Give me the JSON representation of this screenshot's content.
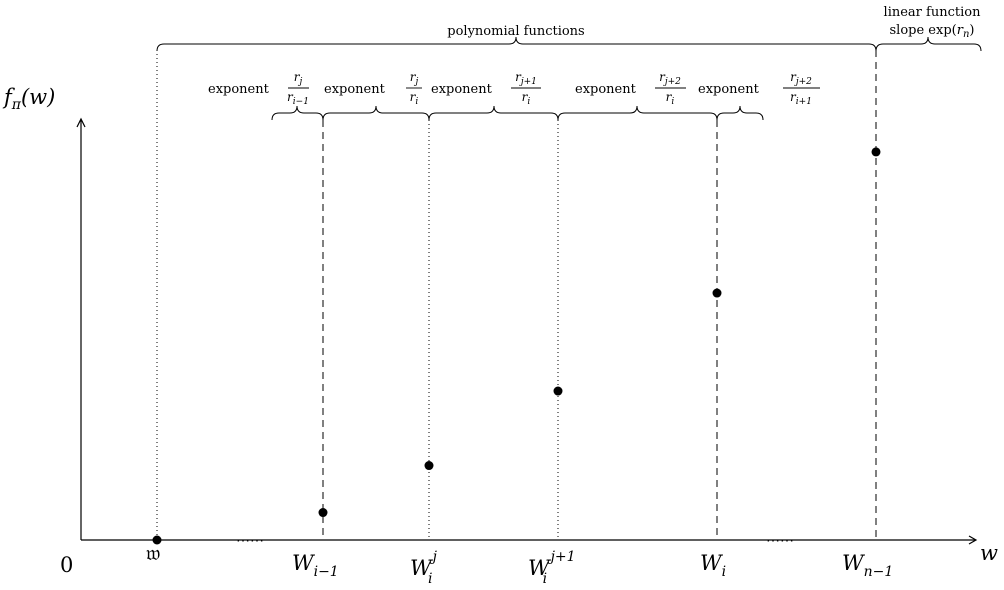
{
  "axes": {
    "y_label": {
      "f": "f",
      "sub": "π",
      "arg": "(w)"
    },
    "x_label": "w",
    "origin_label": "0",
    "gap_marks": [
      "⋯⋯",
      "⋯⋯"
    ]
  },
  "x_ticks": [
    {
      "id": "frak-w",
      "text": "𝔴"
    },
    {
      "id": "w-im1",
      "base": "W",
      "sub": "i−1",
      "sup": ""
    },
    {
      "id": "w-ij",
      "base": "W",
      "sub": "i",
      "sup": "j"
    },
    {
      "id": "w-ij1",
      "base": "W",
      "sub": "i",
      "sup": "j+1"
    },
    {
      "id": "w-i",
      "base": "W",
      "sub": "i",
      "sup": ""
    },
    {
      "id": "w-nm1",
      "base": "W",
      "sub": "n−1",
      "sup": ""
    }
  ],
  "braces": {
    "polynomial": "polynomial functions",
    "linear_line1": "linear function",
    "linear_line2_text": "slope exp(",
    "linear_line2_var": "r",
    "linear_line2_sub": "n",
    "linear_line2_close": ")"
  },
  "exponent_word": "exponent",
  "exponents": [
    {
      "num": "r",
      "num_sub": "j",
      "den": "r",
      "den_sub": "i−1"
    },
    {
      "num": "r",
      "num_sub": "j",
      "den": "r",
      "den_sub": "i"
    },
    {
      "num": "r",
      "num_sub": "j+1",
      "den": "r",
      "den_sub": "i"
    },
    {
      "num": "r",
      "num_sub": "j+2",
      "den": "r",
      "den_sub": "i"
    },
    {
      "num": "r",
      "num_sub": "j+2",
      "den": "r",
      "den_sub": "i+1"
    }
  ],
  "points": [
    {
      "name": "frak-w",
      "x_rel": 0.0,
      "value": 0.0
    },
    {
      "name": "W_{i-1}",
      "value": 0.07
    },
    {
      "name": "W_i^j",
      "value": 0.19
    },
    {
      "name": "W_i^{j+1}",
      "value": 0.38
    },
    {
      "name": "W_i",
      "value": 0.63
    },
    {
      "name": "W_{n-1}",
      "value": 0.99
    }
  ]
}
